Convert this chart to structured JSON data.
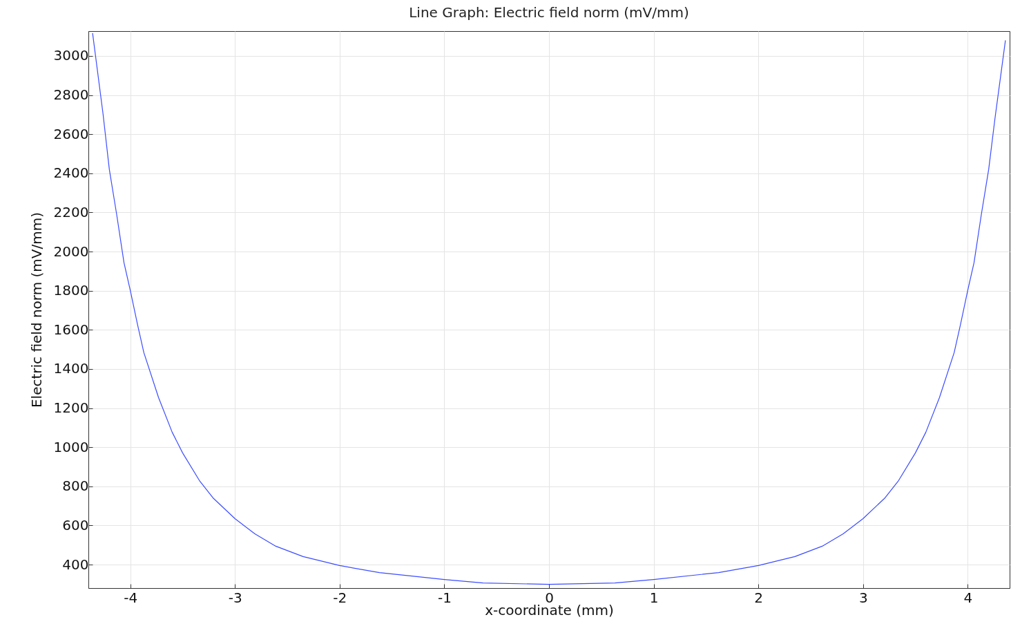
{
  "chart_data": {
    "type": "line",
    "title": "Line Graph: Electric field norm (mV/mm)",
    "xlabel": "x-coordinate (mm)",
    "ylabel": "Electric field norm (mV/mm)",
    "xlim": [
      -4.4,
      4.4
    ],
    "ylim": [
      280,
      3127
    ],
    "xticks": [
      -4,
      -3,
      -2,
      -1,
      0,
      1,
      2,
      3,
      4
    ],
    "yticks": [
      400,
      600,
      800,
      1000,
      1200,
      1400,
      1600,
      1800,
      2000,
      2200,
      2400,
      2600,
      2800,
      3000
    ],
    "grid": true,
    "line_style": "solid",
    "series": [
      {
        "color": "#3b4cff",
        "x": [
          -4.36,
          -4.26,
          -4.2,
          -4.13,
          -4.06,
          -4.0,
          -3.93,
          -3.87,
          -3.73,
          -3.6,
          -3.5,
          -3.34,
          -3.21,
          -3.0,
          -2.81,
          -2.61,
          -2.35,
          -2.0,
          -1.62,
          -1.0,
          -0.63,
          0,
          0.63,
          1.0,
          1.62,
          2.0,
          2.35,
          2.61,
          2.81,
          3.0,
          3.21,
          3.34,
          3.5,
          3.6,
          3.73,
          3.87,
          3.93,
          4.0,
          4.06,
          4.13,
          4.2,
          4.26,
          4.36
        ],
        "values": [
          3117,
          2703,
          2420,
          2190,
          1943,
          1802,
          1625,
          1483,
          1254,
          1077,
          971,
          830,
          741,
          635,
          557,
          494,
          441,
          395,
          359,
          324,
          306,
          299,
          306,
          324,
          359,
          395,
          441,
          494,
          557,
          635,
          741,
          830,
          971,
          1077,
          1254,
          1483,
          1625,
          1802,
          1943,
          2190,
          2420,
          2680,
          3080
        ]
      }
    ]
  }
}
